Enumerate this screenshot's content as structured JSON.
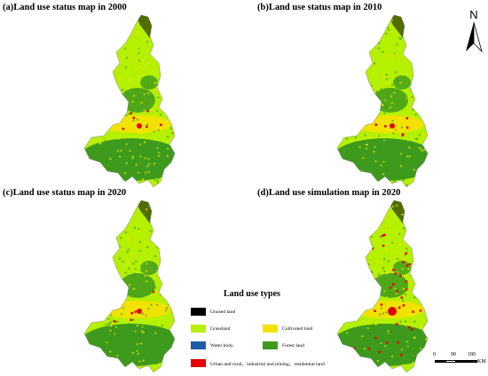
{
  "panels": [
    {
      "title": "(a)Land use status map in 2000",
      "kind": "status"
    },
    {
      "title": "(b)Land use status map in 2010",
      "kind": "status"
    },
    {
      "title": "(c)Land use status map in 2020",
      "kind": "status"
    },
    {
      "title": "(d)Land use simulation map in 2020",
      "kind": "simulation"
    }
  ],
  "legend": {
    "title": "Land use types",
    "items": [
      {
        "label": "Unused land",
        "color": "#000000"
      },
      {
        "label": "Grassland",
        "color": "#b5f000"
      },
      {
        "label": "Cultivated land",
        "color": "#f2e200"
      },
      {
        "label": "Water body",
        "color": "#1f5aa6"
      },
      {
        "label": "Forest land",
        "color": "#3d9a1c"
      },
      {
        "label": "Urban and rural、industrial and mining、residential land",
        "color": "#e30000"
      }
    ]
  },
  "north_arrow": {
    "label": "N"
  },
  "scale": {
    "labels": [
      "0",
      "90",
      "180"
    ],
    "unit": "KM"
  }
}
